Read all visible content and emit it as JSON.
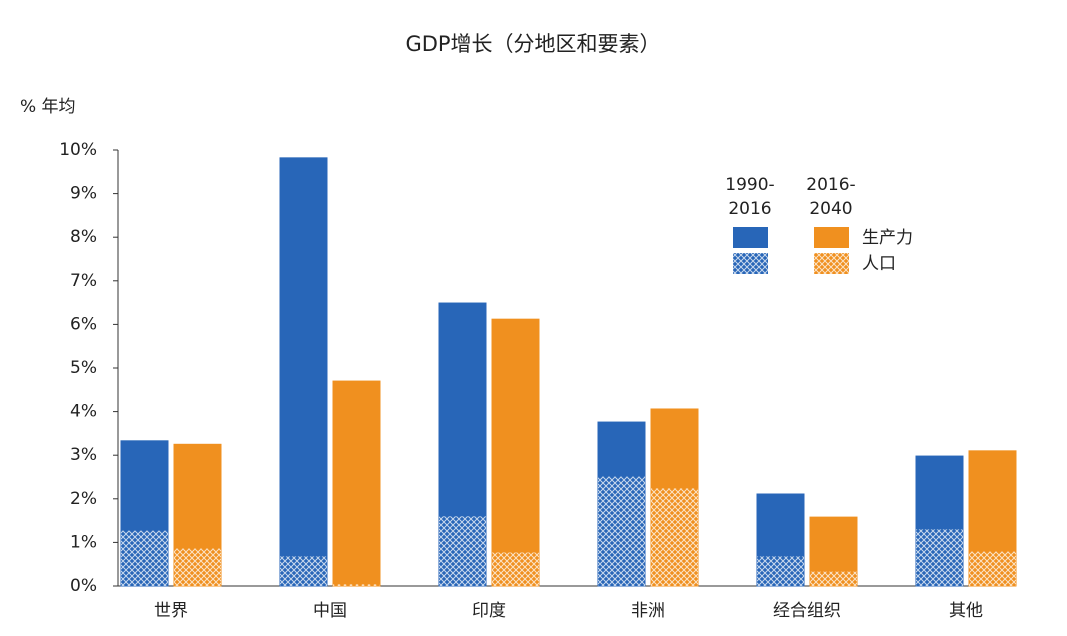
{
  "chart_data": {
    "type": "grouped-stacked-bar",
    "title": "GDP增长（分地区和要素）",
    "y_axis_label": "% 年均",
    "categories": [
      "世界",
      "中国",
      "印度",
      "非洲",
      "经合组织",
      "其他"
    ],
    "periods": [
      {
        "label": [
          "1990-",
          "2016"
        ],
        "color": "#2866b8"
      },
      {
        "label": [
          "2016-",
          "2040"
        ],
        "color": "#f0901f"
      }
    ],
    "series": [
      {
        "name": "人口",
        "hatched": true,
        "values": [
          [
            1.28,
            0.69,
            1.61,
            2.52,
            0.69,
            1.31
          ],
          [
            0.87,
            0.05,
            0.78,
            2.25,
            0.34,
            0.8
          ]
        ]
      },
      {
        "name": "生产力",
        "hatched": false,
        "values": [
          [
            2.05,
            9.13,
            4.88,
            1.24,
            1.42,
            1.67
          ],
          [
            2.38,
            4.65,
            5.34,
            1.81,
            1.24,
            2.3
          ]
        ]
      }
    ],
    "ylim": [
      0,
      10
    ],
    "yticks": [
      {
        "value": 0,
        "label": "0%"
      },
      {
        "value": 1,
        "label": "1%"
      },
      {
        "value": 2,
        "label": "2%"
      },
      {
        "value": 3,
        "label": "3%"
      },
      {
        "value": 4,
        "label": "4%"
      },
      {
        "value": 5,
        "label": "5%"
      },
      {
        "value": 6,
        "label": "6%"
      },
      {
        "value": 7,
        "label": "7%"
      },
      {
        "value": 8,
        "label": "8%"
      },
      {
        "value": 9,
        "label": "9%"
      },
      {
        "value": 10,
        "label": "10%"
      }
    ]
  }
}
